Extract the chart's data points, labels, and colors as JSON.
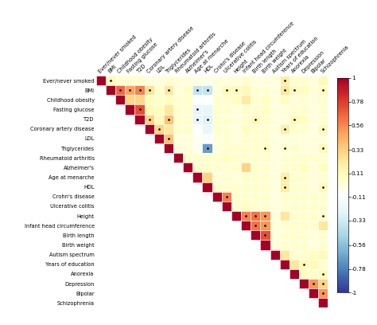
{
  "labels": [
    "Ever/never smoked",
    "BMI",
    "Childhood obesity",
    "Fasting glucose",
    "T2D",
    "Coronary artery disease",
    "LDL",
    "Triglycerides",
    "Rheumatoid arthritis",
    "Alzheimer's",
    "Age at menarche",
    "HDL",
    "Crohn's disease",
    "Ulcerative colitis",
    "Height",
    "Infant head circumference",
    "Birth length",
    "Birth weight",
    "Autism spectrum",
    "Years of education",
    "Anorexia",
    "Depression",
    "Bipolar",
    "Schizophrenia"
  ],
  "corr": [
    [
      1.0,
      0.12,
      0.05,
      0.05,
      0.05,
      0.02,
      0.01,
      0.05,
      0.02,
      0.01,
      0.0,
      -0.02,
      0.02,
      0.01,
      0.02,
      0.05,
      0.01,
      0.01,
      0.01,
      0.18,
      0.05,
      0.05,
      0.02,
      0.12
    ],
    [
      0.12,
      1.0,
      0.65,
      0.48,
      0.58,
      0.25,
      0.05,
      0.22,
      0.03,
      0.08,
      -0.38,
      -0.38,
      0.02,
      0.12,
      0.12,
      0.12,
      0.04,
      0.03,
      0.02,
      0.22,
      0.12,
      0.1,
      0.02,
      0.1
    ],
    [
      0.05,
      0.65,
      1.0,
      0.3,
      0.3,
      0.1,
      0.06,
      0.1,
      0.05,
      0.06,
      -0.1,
      -0.1,
      0.05,
      0.05,
      0.1,
      0.2,
      0.05,
      0.08,
      0.02,
      0.1,
      0.02,
      0.05,
      0.01,
      0.05
    ],
    [
      0.05,
      0.48,
      0.3,
      1.0,
      0.72,
      0.12,
      0.1,
      0.22,
      0.05,
      0.05,
      -0.22,
      -0.22,
      0.05,
      0.05,
      0.02,
      0.05,
      0.05,
      0.08,
      0.01,
      0.02,
      0.05,
      0.05,
      0.01,
      0.05
    ],
    [
      0.05,
      0.58,
      0.3,
      0.72,
      1.0,
      0.32,
      0.12,
      0.38,
      0.05,
      0.05,
      -0.22,
      -0.28,
      0.05,
      0.05,
      0.02,
      0.05,
      0.12,
      0.05,
      0.01,
      0.02,
      0.12,
      0.1,
      0.01,
      0.05
    ],
    [
      0.02,
      0.25,
      0.1,
      0.12,
      0.32,
      1.0,
      0.32,
      0.22,
      0.05,
      0.05,
      -0.1,
      -0.22,
      0.05,
      0.05,
      0.02,
      0.1,
      0.05,
      0.05,
      0.01,
      0.18,
      0.05,
      0.05,
      0.01,
      0.12
    ],
    [
      0.01,
      0.05,
      0.06,
      0.1,
      0.12,
      0.32,
      1.0,
      0.38,
      0.02,
      0.02,
      -0.05,
      -0.12,
      0.02,
      0.05,
      0.02,
      0.05,
      0.05,
      0.05,
      0.01,
      0.02,
      0.02,
      0.02,
      0.01,
      0.02
    ],
    [
      0.05,
      0.22,
      0.1,
      0.22,
      0.38,
      0.22,
      0.38,
      1.0,
      0.02,
      0.02,
      -0.05,
      -0.68,
      0.02,
      0.05,
      0.05,
      0.05,
      0.05,
      0.08,
      0.01,
      0.05,
      0.05,
      0.02,
      0.01,
      0.12
    ],
    [
      0.02,
      0.03,
      0.05,
      0.05,
      0.05,
      0.05,
      0.02,
      0.02,
      1.0,
      0.05,
      0.05,
      0.05,
      0.05,
      0.1,
      0.05,
      0.05,
      0.05,
      0.05,
      0.01,
      0.05,
      0.05,
      0.05,
      0.05,
      0.05
    ],
    [
      0.01,
      0.08,
      0.06,
      0.05,
      0.05,
      0.05,
      0.02,
      0.02,
      0.05,
      1.0,
      0.05,
      0.05,
      0.05,
      0.05,
      0.05,
      0.32,
      0.05,
      0.05,
      0.01,
      0.05,
      0.05,
      0.1,
      0.02,
      0.1
    ],
    [
      0.0,
      -0.38,
      -0.1,
      -0.22,
      -0.22,
      -0.1,
      -0.05,
      -0.05,
      0.05,
      0.05,
      1.0,
      0.32,
      0.02,
      0.05,
      0.02,
      0.05,
      0.05,
      0.05,
      0.01,
      0.18,
      0.05,
      0.05,
      0.02,
      0.05
    ],
    [
      -0.02,
      -0.38,
      -0.1,
      -0.22,
      -0.28,
      -0.22,
      -0.12,
      -0.68,
      0.05,
      0.05,
      0.32,
      1.0,
      0.05,
      0.05,
      0.05,
      0.05,
      0.05,
      0.05,
      0.01,
      0.18,
      0.05,
      0.05,
      0.01,
      0.12
    ],
    [
      0.02,
      0.02,
      0.05,
      0.05,
      0.05,
      0.05,
      0.02,
      0.02,
      0.05,
      0.05,
      0.02,
      0.05,
      1.0,
      0.58,
      0.05,
      0.05,
      0.05,
      0.05,
      0.01,
      0.05,
      0.05,
      0.05,
      0.05,
      0.05
    ],
    [
      0.01,
      0.12,
      0.05,
      0.05,
      0.05,
      0.05,
      0.05,
      0.05,
      0.1,
      0.05,
      0.05,
      0.05,
      0.58,
      1.0,
      0.05,
      0.1,
      0.05,
      0.05,
      0.01,
      0.05,
      0.05,
      0.05,
      0.05,
      0.05
    ],
    [
      0.02,
      0.12,
      0.1,
      0.02,
      0.02,
      0.02,
      0.02,
      0.05,
      0.05,
      0.05,
      0.02,
      0.05,
      0.05,
      0.05,
      1.0,
      0.58,
      0.62,
      0.52,
      0.02,
      0.22,
      0.05,
      0.05,
      0.05,
      0.05
    ],
    [
      0.05,
      0.12,
      0.2,
      0.05,
      0.05,
      0.1,
      0.05,
      0.05,
      0.05,
      0.32,
      0.05,
      0.05,
      0.05,
      0.1,
      0.58,
      1.0,
      0.62,
      0.52,
      0.02,
      0.05,
      0.05,
      0.05,
      0.05,
      0.22
    ],
    [
      0.01,
      0.04,
      0.05,
      0.05,
      0.12,
      0.05,
      0.05,
      0.05,
      0.05,
      0.05,
      0.05,
      0.05,
      0.05,
      0.05,
      0.62,
      0.62,
      1.0,
      0.72,
      0.01,
      0.05,
      0.05,
      0.05,
      0.01,
      0.05
    ],
    [
      0.01,
      0.03,
      0.08,
      0.08,
      0.05,
      0.05,
      0.05,
      0.08,
      0.05,
      0.05,
      0.05,
      0.05,
      0.05,
      0.05,
      0.52,
      0.52,
      0.72,
      1.0,
      0.01,
      0.05,
      0.05,
      0.05,
      0.01,
      0.05
    ],
    [
      0.01,
      0.02,
      0.02,
      0.01,
      0.01,
      0.01,
      0.01,
      0.01,
      0.01,
      0.01,
      0.01,
      0.01,
      0.01,
      0.01,
      0.02,
      0.02,
      0.01,
      0.01,
      1.0,
      0.22,
      0.05,
      0.05,
      0.1,
      0.12
    ],
    [
      0.18,
      0.22,
      0.1,
      0.02,
      0.02,
      0.18,
      0.02,
      0.05,
      0.05,
      0.05,
      0.18,
      0.18,
      0.05,
      0.05,
      0.22,
      0.05,
      0.05,
      0.05,
      0.22,
      1.0,
      0.22,
      0.12,
      0.12,
      0.05
    ],
    [
      0.05,
      0.12,
      0.02,
      0.05,
      0.12,
      0.05,
      0.02,
      0.05,
      0.05,
      0.05,
      0.05,
      0.05,
      0.05,
      0.05,
      0.05,
      0.05,
      0.05,
      0.05,
      0.05,
      0.22,
      1.0,
      0.1,
      0.05,
      0.12
    ],
    [
      0.05,
      0.1,
      0.05,
      0.05,
      0.1,
      0.05,
      0.02,
      0.02,
      0.05,
      0.1,
      0.05,
      0.05,
      0.05,
      0.05,
      0.05,
      0.05,
      0.05,
      0.05,
      0.05,
      0.12,
      0.1,
      1.0,
      0.52,
      0.32
    ],
    [
      0.02,
      0.02,
      0.01,
      0.01,
      0.01,
      0.01,
      0.01,
      0.01,
      0.05,
      0.02,
      0.02,
      0.01,
      0.05,
      0.05,
      0.05,
      0.05,
      0.01,
      0.01,
      0.1,
      0.12,
      0.05,
      0.52,
      1.0,
      0.52
    ],
    [
      0.12,
      0.1,
      0.05,
      0.05,
      0.05,
      0.12,
      0.02,
      0.12,
      0.05,
      0.1,
      0.05,
      0.12,
      0.05,
      0.05,
      0.05,
      0.22,
      0.05,
      0.05,
      0.12,
      0.05,
      0.12,
      0.32,
      0.52,
      1.0
    ]
  ],
  "sig": [
    [
      0,
      1,
      0,
      0,
      0,
      0,
      0,
      0,
      0,
      0,
      0,
      0,
      0,
      0,
      0,
      0,
      0,
      0,
      0,
      1,
      0,
      0,
      0,
      0
    ],
    [
      1,
      0,
      1,
      1,
      1,
      1,
      0,
      1,
      0,
      0,
      1,
      1,
      0,
      1,
      1,
      0,
      0,
      0,
      0,
      1,
      1,
      0,
      0,
      1
    ],
    [
      0,
      1,
      0,
      0,
      0,
      0,
      0,
      0,
      0,
      0,
      0,
      0,
      0,
      0,
      0,
      0,
      0,
      0,
      0,
      0,
      0,
      0,
      0,
      0
    ],
    [
      0,
      1,
      0,
      0,
      1,
      0,
      0,
      0,
      0,
      0,
      1,
      0,
      0,
      0,
      0,
      0,
      0,
      0,
      0,
      0,
      0,
      0,
      0,
      0
    ],
    [
      0,
      1,
      0,
      1,
      0,
      1,
      0,
      1,
      0,
      0,
      1,
      1,
      0,
      0,
      0,
      0,
      1,
      0,
      0,
      0,
      1,
      0,
      0,
      0
    ],
    [
      0,
      1,
      0,
      0,
      1,
      0,
      1,
      0,
      0,
      0,
      0,
      0,
      0,
      0,
      0,
      0,
      0,
      0,
      0,
      1,
      0,
      0,
      0,
      1
    ],
    [
      0,
      0,
      0,
      0,
      0,
      1,
      0,
      1,
      0,
      0,
      0,
      0,
      0,
      0,
      0,
      0,
      0,
      0,
      0,
      0,
      0,
      0,
      0,
      0
    ],
    [
      0,
      1,
      0,
      0,
      1,
      0,
      1,
      0,
      0,
      0,
      0,
      1,
      0,
      0,
      0,
      0,
      0,
      1,
      0,
      1,
      0,
      0,
      0,
      1
    ],
    [
      0,
      0,
      0,
      0,
      0,
      0,
      0,
      0,
      0,
      0,
      0,
      0,
      0,
      0,
      0,
      0,
      0,
      0,
      0,
      0,
      0,
      0,
      0,
      0
    ],
    [
      0,
      0,
      0,
      0,
      0,
      0,
      0,
      0,
      0,
      0,
      0,
      0,
      0,
      0,
      0,
      0,
      0,
      0,
      0,
      0,
      0,
      0,
      0,
      0
    ],
    [
      0,
      1,
      0,
      1,
      1,
      0,
      0,
      0,
      0,
      0,
      0,
      0,
      0,
      0,
      0,
      0,
      0,
      0,
      0,
      1,
      0,
      0,
      0,
      0
    ],
    [
      0,
      1,
      0,
      1,
      1,
      0,
      0,
      1,
      0,
      0,
      0,
      0,
      0,
      0,
      0,
      0,
      0,
      0,
      0,
      1,
      0,
      0,
      0,
      1
    ],
    [
      0,
      0,
      0,
      0,
      0,
      0,
      0,
      0,
      0,
      0,
      0,
      0,
      0,
      1,
      0,
      0,
      0,
      0,
      0,
      0,
      0,
      0,
      0,
      0
    ],
    [
      0,
      1,
      0,
      0,
      0,
      0,
      0,
      0,
      0,
      0,
      0,
      0,
      1,
      0,
      0,
      0,
      0,
      0,
      0,
      0,
      0,
      0,
      0,
      0
    ],
    [
      0,
      1,
      0,
      0,
      0,
      0,
      0,
      0,
      0,
      0,
      0,
      0,
      0,
      0,
      0,
      1,
      1,
      1,
      0,
      0,
      0,
      0,
      0,
      1
    ],
    [
      0,
      0,
      0,
      0,
      0,
      0,
      0,
      0,
      0,
      0,
      0,
      0,
      0,
      0,
      1,
      0,
      1,
      1,
      0,
      0,
      0,
      0,
      0,
      0
    ],
    [
      0,
      0,
      0,
      0,
      1,
      0,
      0,
      0,
      0,
      0,
      0,
      0,
      0,
      0,
      1,
      1,
      0,
      1,
      0,
      0,
      0,
      0,
      0,
      0
    ],
    [
      0,
      0,
      0,
      0,
      0,
      0,
      0,
      1,
      0,
      0,
      0,
      0,
      0,
      0,
      1,
      1,
      1,
      0,
      0,
      0,
      0,
      0,
      0,
      0
    ],
    [
      0,
      0,
      0,
      0,
      0,
      0,
      0,
      0,
      0,
      0,
      0,
      0,
      0,
      0,
      0,
      0,
      0,
      0,
      0,
      0,
      0,
      0,
      0,
      0
    ],
    [
      1,
      1,
      0,
      0,
      0,
      1,
      0,
      1,
      0,
      0,
      1,
      1,
      0,
      0,
      0,
      0,
      0,
      0,
      0,
      0,
      0,
      1,
      0,
      0
    ],
    [
      0,
      1,
      0,
      0,
      1,
      0,
      0,
      0,
      0,
      0,
      0,
      0,
      0,
      0,
      0,
      0,
      0,
      0,
      0,
      0,
      0,
      0,
      0,
      1
    ],
    [
      0,
      0,
      0,
      0,
      0,
      0,
      0,
      0,
      0,
      0,
      0,
      0,
      0,
      0,
      0,
      0,
      0,
      0,
      0,
      1,
      0,
      0,
      1,
      1
    ],
    [
      0,
      0,
      0,
      0,
      0,
      0,
      0,
      0,
      0,
      0,
      0,
      0,
      0,
      0,
      0,
      0,
      0,
      0,
      0,
      0,
      0,
      1,
      0,
      1
    ],
    [
      0,
      1,
      0,
      0,
      0,
      1,
      0,
      1,
      0,
      0,
      0,
      1,
      0,
      0,
      0,
      0,
      0,
      0,
      1,
      0,
      1,
      1,
      1,
      0
    ]
  ],
  "colorbar_ticks": [
    1,
    0.78,
    0.56,
    0.33,
    0.11,
    -0.11,
    -0.33,
    -0.56,
    -0.78,
    -1
  ],
  "vmin": -1,
  "vmax": 1,
  "figsize": [
    4.74,
    4.08
  ],
  "dpi": 100,
  "label_fontsize": 4.8,
  "colorbar_label_fontsize": 5.2
}
